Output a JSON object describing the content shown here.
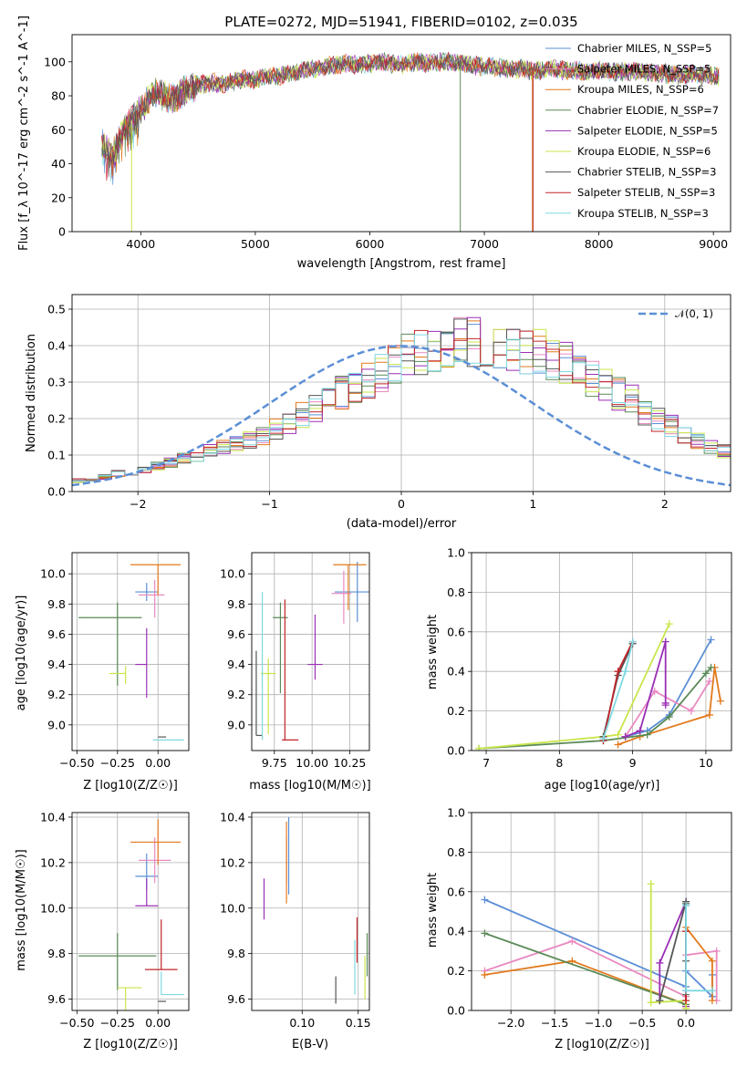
{
  "title": "PLATE=0272, MJD=51941, FIBERID=0102, z=0.035",
  "colors": {
    "chabrier_miles": "#5b8fd6",
    "salpeter_miles": "#e98ac0",
    "kroupa_miles": "#e27a1c",
    "chabrier_elodie": "#5a8a57",
    "salpeter_elodie": "#9a2fb5",
    "kroupa_elodie": "#c8e64b",
    "chabrier_stelib": "#555555",
    "salpeter_stelib": "#c0252a",
    "kroupa_stelib": "#7fd9e2",
    "gaussian": "#5b8fd6",
    "grid": "#b0b0b0"
  },
  "legend_spectrum": [
    "Chabrier MILES, N_SSP=5",
    "Salpeter MILES, N_SSP=5",
    "Kroupa MILES, N_SSP=6",
    "Chabrier ELODIE, N_SSP=7",
    "Salpeter ELODIE, N_SSP=5",
    "Kroupa ELODIE, N_SSP=6",
    "Chabrier STELIB, N_SSP=3",
    "Salpeter STELIB, N_SSP=3",
    "Kroupa STELIB, N_SSP=3"
  ],
  "legend_hist": "𝒩(0, 1)",
  "axes": {
    "spec_xlabel": "wavelength [Angstrom, rest frame]",
    "spec_ylabel": "Flux [f_λ 10^-17 erg cm^-2 s^-1 A^-1]",
    "hist_xlabel": "(data-model)/error",
    "hist_ylabel": "Normed distribution",
    "age_ylabel": "age  [log10(age/yr)]",
    "z_xlabel": "Z [log10(Z/Z☉)]",
    "mass_xlabel": "mass [log10(M/M☉)]",
    "mass_ylabel": "mass [log10(M/M☉)]",
    "ebv_xlabel": "E(B-V)",
    "mw_ylabel": "mass weight",
    "age_xlabel": "age  [log10(age/yr)]"
  },
  "chart_data": [
    {
      "type": "line",
      "name": "spectrum",
      "xlim": [
        3400,
        9150
      ],
      "ylim": [
        0,
        116
      ],
      "xticks": [
        4000,
        5000,
        6000,
        7000,
        8000,
        9000
      ],
      "yticks": [
        0,
        20,
        40,
        60,
        80,
        100
      ],
      "x": [
        3660,
        3750,
        3850,
        3950,
        4000,
        4050,
        4100,
        4200,
        4300,
        4400,
        4500,
        4600,
        4700,
        4800,
        4900,
        5000,
        5100,
        5200,
        5300,
        5400,
        5500,
        5600,
        5700,
        5800,
        5900,
        6000,
        6100,
        6200,
        6300,
        6400,
        6500,
        6600,
        6700,
        6800,
        6900,
        7000,
        7100,
        7200,
        7300,
        7400,
        7500,
        7600,
        7700,
        7800,
        7900,
        8000,
        8100,
        8200,
        8300,
        8400,
        8500,
        8600,
        8700,
        8800,
        8900,
        9000,
        9050
      ],
      "y": [
        52,
        45,
        60,
        68,
        72,
        76,
        82,
        80,
        78,
        84,
        86,
        88,
        87,
        88,
        90,
        89,
        92,
        91,
        93,
        95,
        96,
        97,
        98,
        99,
        98,
        99,
        100,
        99,
        98,
        100,
        99,
        100,
        100,
        99,
        98,
        97,
        97,
        96,
        96,
        95,
        95,
        96,
        95,
        95,
        94,
        95,
        94,
        94,
        95,
        94,
        93,
        93,
        92,
        93,
        92,
        92,
        91
      ],
      "grid": false,
      "legend": "top-right"
    },
    {
      "type": "bar",
      "name": "residual histogram",
      "xlim": [
        -2.5,
        2.5
      ],
      "ylim": [
        0,
        0.54
      ],
      "xticks": [
        -2,
        -1,
        0,
        1,
        2
      ],
      "yticks": [
        0.0,
        0.1,
        0.2,
        0.3,
        0.4,
        0.5
      ],
      "bin_edges_start": -2.5,
      "bin_width": 0.1,
      "base_values": [
        0.03,
        0.03,
        0.04,
        0.05,
        0.05,
        0.06,
        0.07,
        0.08,
        0.09,
        0.1,
        0.11,
        0.12,
        0.13,
        0.14,
        0.15,
        0.17,
        0.19,
        0.21,
        0.23,
        0.25,
        0.27,
        0.29,
        0.31,
        0.33,
        0.35,
        0.37,
        0.38,
        0.39,
        0.4,
        0.41,
        0.41,
        0.41,
        0.4,
        0.4,
        0.39,
        0.38,
        0.37,
        0.35,
        0.33,
        0.31,
        0.29,
        0.27,
        0.25,
        0.22,
        0.2,
        0.18,
        0.16,
        0.14,
        0.12,
        0.11,
        0.09,
        0.08,
        0.07,
        0.06,
        0.05,
        0.05,
        0.04,
        0.04,
        0.04,
        0.03
      ],
      "gaussian_mean": 0,
      "gaussian_sigma": 1,
      "grid": true,
      "legend": "top-right"
    },
    {
      "type": "scatter",
      "name": "age vs Z",
      "xlim": [
        -0.53,
        0.19
      ],
      "ylim": [
        8.83,
        10.14
      ],
      "xticks": [
        -0.5,
        -0.25,
        0.0
      ],
      "yticks": [
        9.0,
        9.2,
        9.4,
        9.6,
        9.8,
        10.0
      ],
      "points": [
        {
          "key": "chabrier_miles",
          "x": -0.07,
          "xerr": [
            0.07,
            0.07
          ],
          "y": 9.88,
          "yerr": [
            0.06,
            0.06
          ]
        },
        {
          "key": "salpeter_miles",
          "x": -0.02,
          "xerr": [
            0.1,
            0.06
          ],
          "y": 9.86,
          "yerr": [
            0.15,
            0.1
          ]
        },
        {
          "key": "kroupa_miles",
          "x": 0.0,
          "xerr": [
            0.17,
            0.14
          ],
          "y": 10.06,
          "yerr": [
            0.2,
            0.0
          ]
        },
        {
          "key": "chabrier_elodie",
          "x": -0.25,
          "xerr": [
            0.24,
            0.15
          ],
          "y": 9.71,
          "yerr": [
            0.45,
            0.1
          ]
        },
        {
          "key": "salpeter_elodie",
          "x": -0.07,
          "xerr": [
            0.07,
            0.0
          ],
          "y": 9.4,
          "yerr": [
            0.22,
            0.24
          ]
        },
        {
          "key": "kroupa_elodie",
          "x": -0.2,
          "xerr": [
            0.1,
            0.0
          ],
          "y": 9.34,
          "yerr": [
            0.07,
            0.05
          ]
        },
        {
          "key": "chabrier_stelib",
          "x": 0.0,
          "xerr": [
            0.0,
            0.05
          ],
          "y": 8.92,
          "yerr": [
            0.0,
            0.0
          ]
        },
        {
          "key": "salpeter_stelib",
          "x": 0.02,
          "xerr": [
            0.0,
            0.0
          ],
          "y": 9.0,
          "yerr": [
            0.0,
            0.0
          ]
        },
        {
          "key": "kroupa_stelib",
          "x": 0.02,
          "xerr": [
            0.05,
            0.14
          ],
          "y": 8.9,
          "yerr": [
            0.0,
            0.0
          ]
        }
      ],
      "grid": true
    },
    {
      "type": "scatter",
      "name": "age vs mass",
      "xlim": [
        9.6,
        10.38
      ],
      "ylim": [
        8.83,
        10.14
      ],
      "xticks": [
        9.75,
        10.0,
        10.25
      ],
      "yticks": [
        9.0,
        9.2,
        9.4,
        9.6,
        9.8,
        10.0
      ],
      "points": [
        {
          "key": "chabrier_miles",
          "x": 10.3,
          "xerr": [
            0.15,
            0.08
          ],
          "y": 9.88,
          "yerr": [
            0.2,
            0.2
          ]
        },
        {
          "key": "salpeter_miles",
          "x": 10.21,
          "xerr": [
            0.08,
            0.05
          ],
          "y": 9.87,
          "yerr": [
            0.2,
            0.15
          ]
        },
        {
          "key": "kroupa_miles",
          "x": 10.24,
          "xerr": [
            0.1,
            0.12
          ],
          "y": 10.06,
          "yerr": [
            0.3,
            0.0
          ]
        },
        {
          "key": "chabrier_elodie",
          "x": 9.79,
          "xerr": [
            0.05,
            0.05
          ],
          "y": 9.71,
          "yerr": [
            0.5,
            0.1
          ]
        },
        {
          "key": "salpeter_elodie",
          "x": 10.02,
          "xerr": [
            0.05,
            0.05
          ],
          "y": 9.4,
          "yerr": [
            0.1,
            0.33
          ]
        },
        {
          "key": "kroupa_elodie",
          "x": 9.71,
          "xerr": [
            0.05,
            0.05
          ],
          "y": 9.34,
          "yerr": [
            0.4,
            0.1
          ]
        },
        {
          "key": "chabrier_stelib",
          "x": 9.63,
          "xerr": [
            0.0,
            0.04
          ],
          "y": 8.93,
          "yerr": [
            0.0,
            0.56
          ]
        },
        {
          "key": "salpeter_stelib",
          "x": 9.82,
          "xerr": [
            0.02,
            0.09
          ],
          "y": 8.9,
          "yerr": [
            0.0,
            0.93
          ]
        },
        {
          "key": "kroupa_stelib",
          "x": 9.67,
          "xerr": [
            0.0,
            0.0
          ],
          "y": 8.9,
          "yerr": [
            0.0,
            0.98
          ]
        }
      ],
      "grid": true
    },
    {
      "type": "line",
      "name": "mass weight vs age",
      "xlim": [
        6.8,
        10.35
      ],
      "ylim": [
        0,
        1.0
      ],
      "xticks": [
        7,
        8,
        9,
        10
      ],
      "yticks": [
        0.0,
        0.2,
        0.4,
        0.6,
        0.8,
        1.0
      ],
      "series": [
        {
          "key": "chabrier_miles",
          "x": [
            8.9,
            9.2,
            9.5,
            10.07
          ],
          "y": [
            0.07,
            0.1,
            0.18,
            0.56
          ]
        },
        {
          "key": "salpeter_miles",
          "x": [
            8.9,
            9.3,
            9.8,
            10.05
          ],
          "y": [
            0.07,
            0.3,
            0.2,
            0.35
          ]
        },
        {
          "key": "kroupa_miles",
          "x": [
            8.8,
            9.1,
            10.05,
            10.12,
            10.2
          ],
          "y": [
            0.03,
            0.07,
            0.18,
            0.42,
            0.25
          ]
        },
        {
          "key": "chabrier_elodie",
          "x": [
            6.9,
            8.6,
            9.2,
            9.5,
            10.0,
            10.07
          ],
          "y": [
            0.01,
            0.05,
            0.08,
            0.17,
            0.39,
            0.42
          ]
        },
        {
          "key": "salpeter_elodie",
          "x": [
            8.9,
            9.1,
            9.45,
            9.45,
            9.45
          ],
          "y": [
            0.07,
            0.1,
            0.55,
            0.23,
            0.24
          ]
        },
        {
          "key": "kroupa_elodie",
          "x": [
            6.9,
            8.6,
            8.8,
            9.5
          ],
          "y": [
            0.01,
            0.07,
            0.08,
            0.64
          ]
        },
        {
          "key": "chabrier_stelib",
          "x": [
            8.6,
            8.8,
            9.0
          ],
          "y": [
            0.07,
            0.38,
            0.54
          ]
        },
        {
          "key": "salpeter_stelib",
          "x": [
            8.6,
            8.8,
            9.0
          ],
          "y": [
            0.05,
            0.4,
            0.55
          ]
        },
        {
          "key": "kroupa_stelib",
          "x": [
            8.6,
            8.9,
            9.0
          ],
          "y": [
            0.06,
            0.4,
            0.55
          ]
        }
      ],
      "grid": true
    },
    {
      "type": "scatter",
      "name": "mass vs Z",
      "xlim": [
        -0.53,
        0.19
      ],
      "ylim": [
        9.55,
        10.42
      ],
      "xticks": [
        -0.5,
        -0.25,
        0.0
      ],
      "yticks": [
        9.6,
        9.8,
        10.0,
        10.2,
        10.4
      ],
      "points": [
        {
          "key": "chabrier_miles",
          "x": -0.07,
          "xerr": [
            0.07,
            0.07
          ],
          "y": 10.14,
          "yerr": [
            0.06,
            0.1
          ]
        },
        {
          "key": "salpeter_miles",
          "x": -0.02,
          "xerr": [
            0.1,
            0.1
          ],
          "y": 10.21,
          "yerr": [
            0.1,
            0.1
          ]
        },
        {
          "key": "kroupa_miles",
          "x": 0.0,
          "xerr": [
            0.17,
            0.14
          ],
          "y": 10.29,
          "yerr": [
            0.1,
            0.1
          ]
        },
        {
          "key": "chabrier_elodie",
          "x": -0.25,
          "xerr": [
            0.24,
            0.24
          ],
          "y": 9.79,
          "yerr": [
            0.15,
            0.1
          ]
        },
        {
          "key": "salpeter_elodie",
          "x": -0.07,
          "xerr": [
            0.07,
            0.07
          ],
          "y": 10.01,
          "yerr": [
            0.0,
            0.12
          ]
        },
        {
          "key": "kroupa_elodie",
          "x": -0.2,
          "xerr": [
            0.05,
            0.1
          ],
          "y": 9.65,
          "yerr": [
            0.1,
            0.0
          ]
        },
        {
          "key": "chabrier_stelib",
          "x": 0.0,
          "xerr": [
            0.0,
            0.05
          ],
          "y": 9.59,
          "yerr": [
            0.0,
            0.0
          ]
        },
        {
          "key": "salpeter_stelib",
          "x": 0.02,
          "xerr": [
            0.1,
            0.1
          ],
          "y": 9.73,
          "yerr": [
            0.0,
            0.22
          ]
        },
        {
          "key": "kroupa_stelib",
          "x": 0.02,
          "xerr": [
            0.0,
            0.14
          ],
          "y": 9.62,
          "yerr": [
            0.0,
            0.1
          ]
        }
      ],
      "grid": true
    },
    {
      "type": "scatter",
      "name": "mass vs E(B-V)",
      "xlim": [
        0.055,
        0.16
      ],
      "ylim": [
        9.55,
        10.42
      ],
      "xticks": [
        0.1,
        0.15
      ],
      "yticks": [
        9.6,
        9.8,
        10.0,
        10.2,
        10.4
      ],
      "points": [
        {
          "key": "chabrier_miles",
          "x": 0.088,
          "y": 10.22,
          "yerr": [
            0.16,
            0.18
          ]
        },
        {
          "key": "salpeter_miles",
          "x": 0.086,
          "y": 10.21,
          "yerr": [
            0.1,
            0.1
          ]
        },
        {
          "key": "kroupa_miles",
          "x": 0.086,
          "y": 10.2,
          "yerr": [
            0.18,
            0.18
          ]
        },
        {
          "key": "chabrier_elodie",
          "x": 0.158,
          "y": 9.8,
          "yerr": [
            0.1,
            0.09
          ]
        },
        {
          "key": "salpeter_elodie",
          "x": 0.066,
          "y": 10.04,
          "yerr": [
            0.09,
            0.09
          ]
        },
        {
          "key": "kroupa_elodie",
          "x": 0.156,
          "y": 9.7,
          "yerr": [
            0.1,
            0.09
          ]
        },
        {
          "key": "chabrier_stelib",
          "x": 0.13,
          "y": 9.62,
          "yerr": [
            0.04,
            0.08
          ]
        },
        {
          "key": "salpeter_stelib",
          "x": 0.149,
          "y": 9.86,
          "yerr": [
            0.1,
            0.1
          ]
        },
        {
          "key": "kroupa_stelib",
          "x": 0.147,
          "y": 9.74,
          "yerr": [
            0.12,
            0.12
          ]
        }
      ],
      "grid": true
    },
    {
      "type": "line",
      "name": "mass weight vs Z",
      "xlim": [
        -2.45,
        0.52
      ],
      "ylim": [
        0,
        1.0
      ],
      "xticks": [
        -2.0,
        -1.5,
        -1.0,
        -0.5,
        0.0
      ],
      "yticks": [
        0.0,
        0.2,
        0.4,
        0.6,
        0.8,
        1.0
      ],
      "series": [
        {
          "key": "chabrier_miles",
          "x": [
            -2.3,
            0.0,
            0.0,
            0.0,
            0.3,
            0.3
          ],
          "y": [
            0.56,
            0.12,
            0.53,
            0.2,
            0.07,
            0.18
          ]
        },
        {
          "key": "salpeter_miles",
          "x": [
            -2.3,
            -1.3,
            0.0,
            0.0,
            0.35,
            0.35
          ],
          "y": [
            0.2,
            0.35,
            0.07,
            0.28,
            0.3,
            0.05
          ]
        },
        {
          "key": "kroupa_miles",
          "x": [
            -2.3,
            -1.3,
            0.0,
            0.0,
            0.3,
            0.3
          ],
          "y": [
            0.18,
            0.25,
            0.03,
            0.42,
            0.25,
            0.05
          ]
        },
        {
          "key": "chabrier_elodie",
          "x": [
            -2.3,
            0.0,
            0.0,
            0.0
          ],
          "y": [
            0.39,
            0.03,
            0.54,
            0.08
          ]
        },
        {
          "key": "salpeter_elodie",
          "x": [
            -0.3,
            -0.3,
            0.0,
            0.0,
            0.0
          ],
          "y": [
            0.05,
            0.24,
            0.55,
            0.1,
            0.02
          ]
        },
        {
          "key": "kroupa_elodie",
          "x": [
            -0.4,
            -0.4,
            0.0,
            0.0
          ],
          "y": [
            0.64,
            0.04,
            0.05,
            0.01
          ]
        },
        {
          "key": "chabrier_stelib",
          "x": [
            -0.3,
            0.0,
            0.0
          ],
          "y": [
            0.05,
            0.55,
            0.25
          ]
        },
        {
          "key": "salpeter_stelib",
          "x": [
            0.0,
            0.0
          ],
          "y": [
            0.4,
            0.05
          ]
        },
        {
          "key": "kroupa_stelib",
          "x": [
            0.0,
            0.0,
            0.3
          ],
          "y": [
            0.53,
            0.1,
            0.1
          ]
        }
      ],
      "grid": true
    }
  ]
}
